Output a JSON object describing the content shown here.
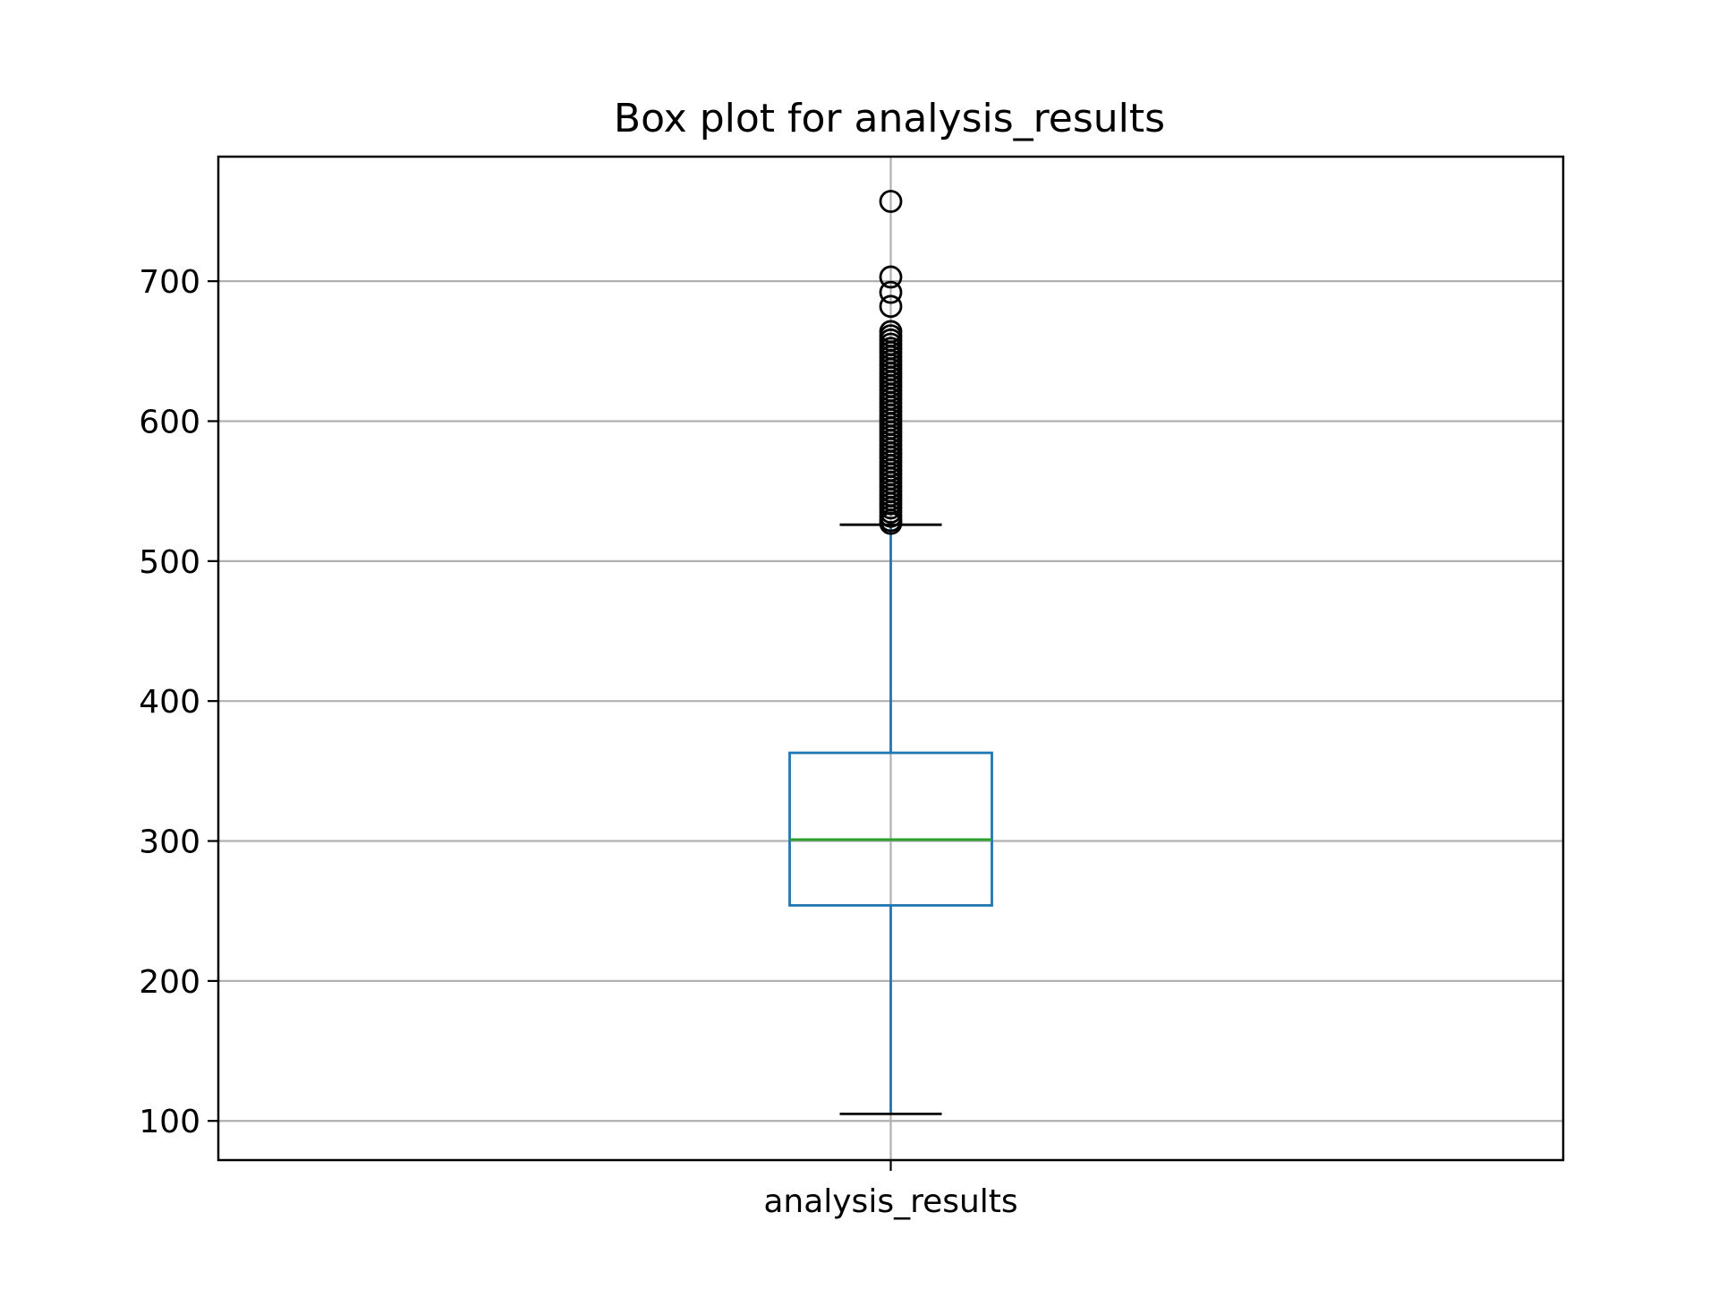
{
  "chart_data": {
    "type": "box",
    "title": "Box plot for analysis_results",
    "xlabel": "",
    "ylabel": "",
    "categories": [
      "analysis_results"
    ],
    "ylim": [
      72,
      789
    ],
    "yticks": [
      100,
      200,
      300,
      400,
      500,
      600,
      700
    ],
    "grid": true,
    "box": {
      "whisker_low": 105,
      "q1": 254,
      "median": 301,
      "q3": 363,
      "whisker_high": 526
    },
    "outliers": [
      757,
      703,
      692,
      682,
      664,
      661,
      658,
      655,
      652,
      649,
      646,
      643,
      640,
      637,
      634,
      631,
      628,
      625,
      622,
      619,
      616,
      613,
      610,
      607,
      604,
      601,
      598,
      595,
      592,
      589,
      586,
      583,
      580,
      577,
      574,
      571,
      568,
      565,
      562,
      559,
      556,
      553,
      550,
      547,
      544,
      541,
      538,
      535,
      532,
      529,
      527
    ],
    "colors": {
      "box": "#1f77b4",
      "median": "#2ca02c",
      "cap": "#000000",
      "grid": "#b0b0b0",
      "outlier": "#000000"
    }
  }
}
